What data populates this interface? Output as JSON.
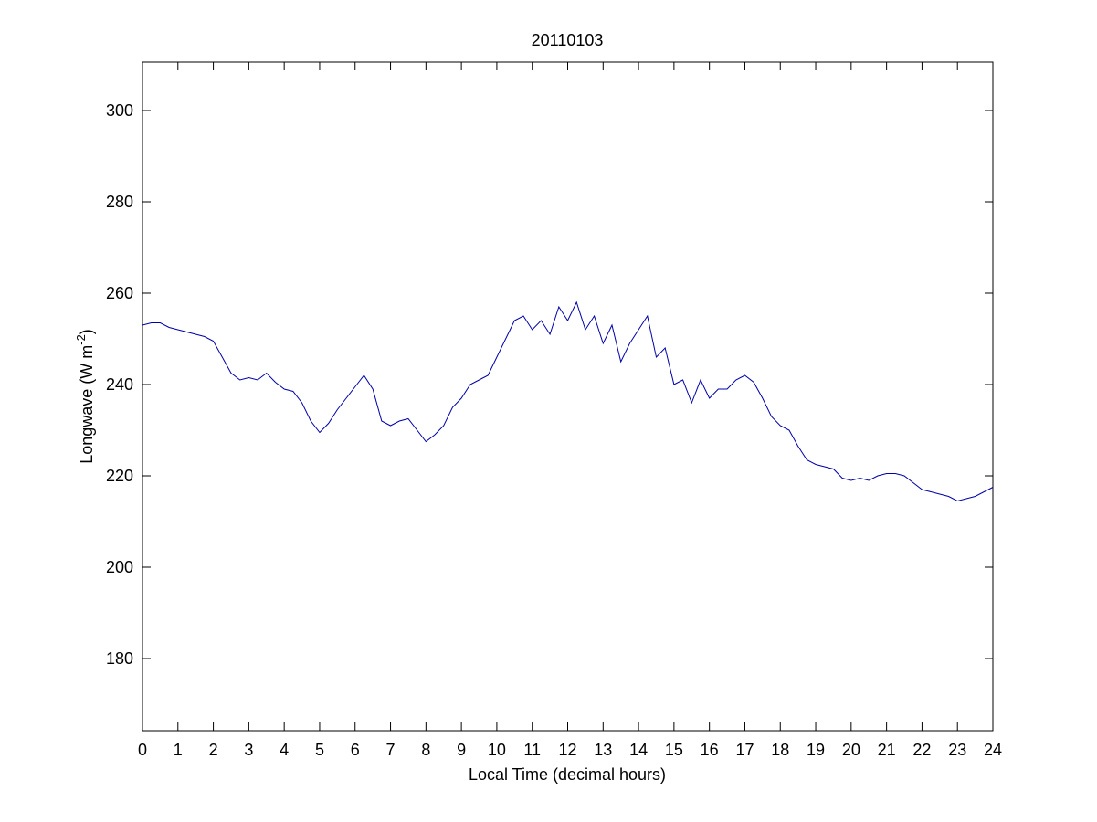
{
  "chart_data": {
    "type": "line",
    "title": "20110103",
    "xlabel": "Local Time (decimal hours)",
    "ylabel": {
      "text": "Longwave (W m",
      "superscript": "-2",
      "suffix": ")"
    },
    "x": [
      0,
      0.25,
      0.5,
      0.75,
      1,
      1.25,
      1.5,
      1.75,
      2,
      2.25,
      2.5,
      2.75,
      3,
      3.25,
      3.5,
      3.75,
      4,
      4.25,
      4.5,
      4.75,
      5,
      5.25,
      5.5,
      5.75,
      6,
      6.25,
      6.5,
      6.75,
      7,
      7.25,
      7.5,
      7.75,
      8,
      8.25,
      8.5,
      8.75,
      9,
      9.25,
      9.5,
      9.75,
      10,
      10.25,
      10.5,
      10.75,
      11,
      11.25,
      11.5,
      11.75,
      12,
      12.25,
      12.5,
      12.75,
      13,
      13.25,
      13.5,
      13.75,
      14,
      14.25,
      14.5,
      14.75,
      15,
      15.25,
      15.5,
      15.75,
      16,
      16.25,
      16.5,
      16.75,
      17,
      17.25,
      17.5,
      17.75,
      18,
      18.25,
      18.5,
      18.75,
      19,
      19.25,
      19.5,
      19.75,
      20,
      20.25,
      20.5,
      20.75,
      21,
      21.25,
      21.5,
      21.75,
      22,
      22.25,
      22.5,
      22.75,
      23,
      23.25,
      23.5,
      23.75,
      24
    ],
    "series": [
      {
        "name": "Longwave",
        "color": "#0000aa",
        "values": [
          253,
          253.5,
          253.5,
          252.5,
          252,
          251.5,
          251,
          250.5,
          249.5,
          246,
          242.5,
          241,
          241.5,
          241,
          242.5,
          240.5,
          239,
          238.5,
          236,
          232,
          229.5,
          231.5,
          234.5,
          237,
          239.5,
          242,
          239,
          232,
          231,
          232,
          232.5,
          230,
          227.5,
          229,
          231,
          235,
          237,
          240,
          241,
          242,
          246,
          250,
          254,
          255,
          252,
          254,
          251,
          257,
          254,
          258,
          252,
          255,
          249,
          253,
          245,
          249,
          252,
          255,
          246,
          248,
          240,
          241,
          236,
          241,
          237,
          239,
          239,
          241,
          242,
          240.5,
          237,
          233,
          231,
          230,
          226.5,
          223.5,
          222.5,
          222,
          221.5,
          219.5,
          219,
          219.5,
          219,
          220,
          220.5,
          220.5,
          220,
          218.5,
          217,
          216.5,
          216,
          215.5,
          214.5,
          215,
          215.5,
          216.5,
          217.5
        ]
      }
    ],
    "xlim": [
      0,
      24
    ],
    "xticks": [
      0,
      1,
      2,
      3,
      4,
      5,
      6,
      7,
      8,
      9,
      10,
      11,
      12,
      13,
      14,
      15,
      16,
      17,
      18,
      19,
      20,
      21,
      22,
      23,
      24
    ],
    "ylim": [
      164.2,
      310.6
    ],
    "yticks": [
      180,
      200,
      220,
      240,
      260,
      280,
      300
    ],
    "grid": false
  }
}
